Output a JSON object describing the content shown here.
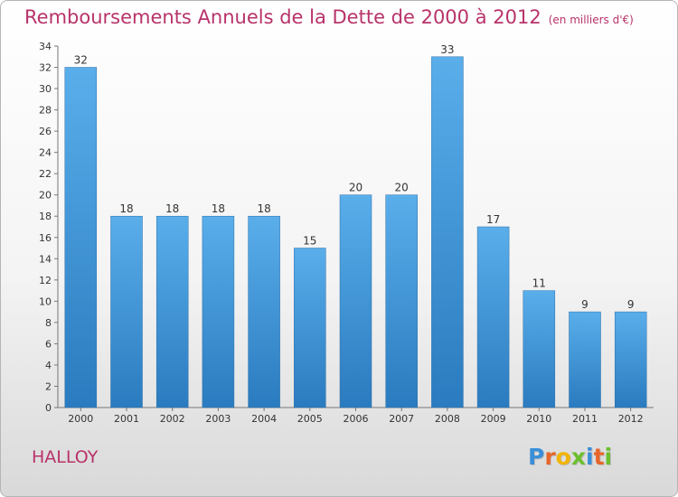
{
  "title": "Remboursements Annuels de la Dette de 2000 à 2012",
  "unit_note": "(en milliers d'€)",
  "commune": "HALLOY",
  "logo": {
    "letters": [
      "P",
      "r",
      "o",
      "x",
      "i",
      "t",
      "i"
    ],
    "colors": [
      "#3a8fd8",
      "#e8662a",
      "#f2b400",
      "#6cbf2e",
      "#3a8fd8",
      "#e8662a",
      "#6cbf2e"
    ]
  },
  "colors": {
    "bar_light": "#5aaeea",
    "bar_dark": "#2a7bbf",
    "title": "#b8336a"
  },
  "chart_data": {
    "type": "bar",
    "categories": [
      "2000",
      "2001",
      "2002",
      "2003",
      "2004",
      "2005",
      "2006",
      "2007",
      "2008",
      "2009",
      "2010",
      "2011",
      "2012"
    ],
    "values": [
      32,
      18,
      18,
      18,
      18,
      15,
      20,
      20,
      33,
      17,
      11,
      9,
      9
    ],
    "title": "Remboursements Annuels de la Dette de 2000 à 2012",
    "ylim": [
      0,
      34
    ],
    "yticks": [
      0,
      2,
      4,
      6,
      8,
      10,
      12,
      14,
      16,
      18,
      20,
      22,
      24,
      26,
      28,
      30,
      32,
      34
    ],
    "grid": false
  }
}
